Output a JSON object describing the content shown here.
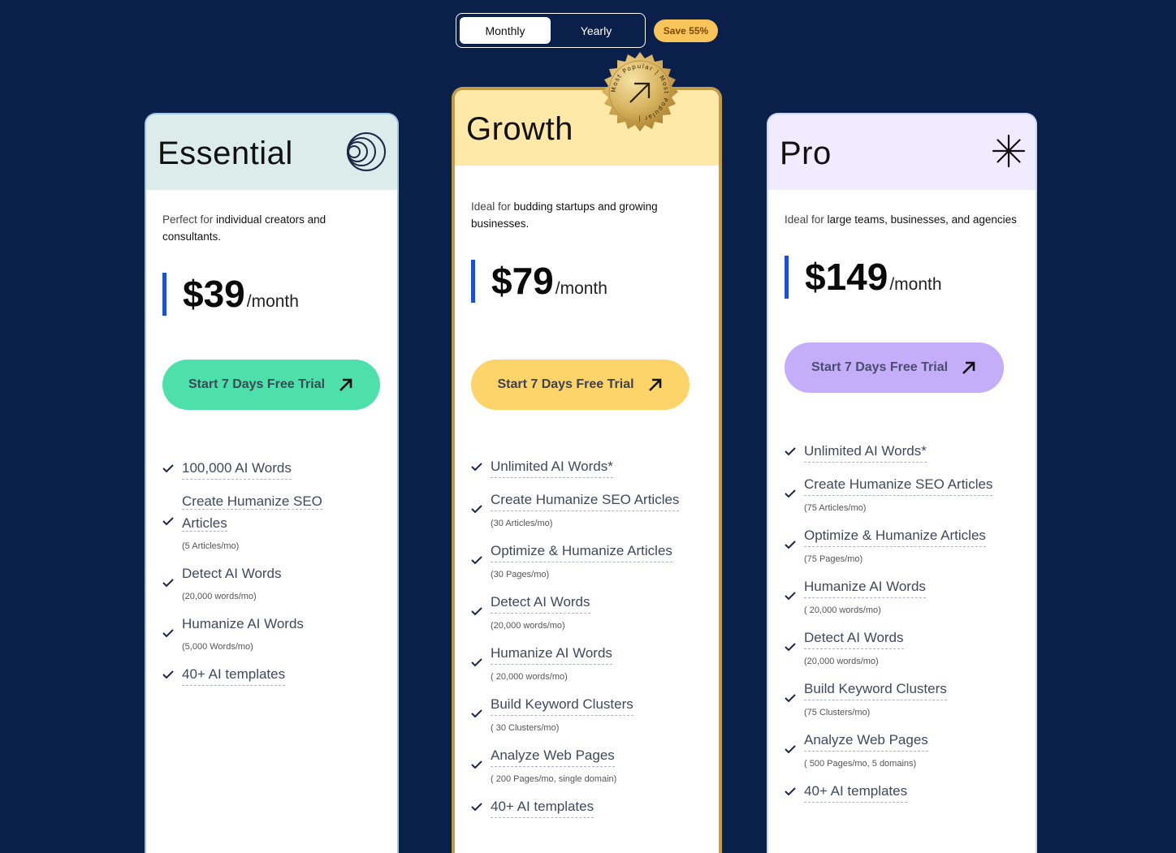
{
  "billing_toggle": {
    "monthly_label": "Monthly",
    "yearly_label": "Yearly",
    "selected": "Monthly",
    "save_badge": "Save 55%"
  },
  "popular_badge": {
    "text": "Most Popular | Most Popular |"
  },
  "plans": [
    {
      "name": "Essential",
      "desc_prefix": "Perfect for ",
      "desc_main": "individual creators and consultants.",
      "price": "$39",
      "period": "/month",
      "cta": "Start 7 Days Free Trial",
      "features": [
        {
          "name": "100,000 AI Words",
          "sub": ""
        },
        {
          "name": "Create Humanize SEO Articles",
          "sub": "(5 Articles/mo)"
        },
        {
          "name": "Detect AI Words",
          "sub": "(20,000 words/mo)"
        },
        {
          "name": "Humanize AI Words",
          "sub": "(5,000 Words/mo)"
        },
        {
          "name": "40+ AI templates",
          "sub": ""
        }
      ]
    },
    {
      "name": "Growth",
      "desc_prefix": "Ideal for ",
      "desc_main": "budding startups and growing businesses.",
      "price": "$79",
      "period": "/month",
      "cta": "Start 7 Days Free Trial",
      "features": [
        {
          "name": "Unlimited AI Words*",
          "sub": ""
        },
        {
          "name": "Create Humanize SEO Articles",
          "sub": "(30 Articles/mo)"
        },
        {
          "name": "Optimize & Humanize Articles",
          "sub": "(30 Pages/mo)"
        },
        {
          "name": "Detect AI Words",
          "sub": "(20,000 words/mo)"
        },
        {
          "name": "Humanize AI Words",
          "sub": "( 20,000 words/mo)"
        },
        {
          "name": "Build Keyword Clusters",
          "sub": "( 30 Clusters/mo)"
        },
        {
          "name": "Analyze Web Pages",
          "sub": "( 200 Pages/mo, single domain)"
        },
        {
          "name": "40+ AI templates",
          "sub": ""
        }
      ]
    },
    {
      "name": "Pro",
      "desc_prefix": "Ideal for ",
      "desc_main": "large teams, businesses, and agencies",
      "price": "$149",
      "period": "/month",
      "cta": "Start 7 Days Free Trial",
      "features": [
        {
          "name": "Unlimited AI Words*",
          "sub": ""
        },
        {
          "name": "Create Humanize SEO Articles",
          "sub": "(75 Articles/mo)"
        },
        {
          "name": "Optimize & Humanize Articles",
          "sub": "(75 Pages/mo)"
        },
        {
          "name": "Humanize AI Words",
          "sub": "( 20,000 words/mo)"
        },
        {
          "name": "Detect AI Words",
          "sub": "(20,000 words/mo)"
        },
        {
          "name": "Build Keyword Clusters",
          "sub": "(75  Clusters/mo)"
        },
        {
          "name": "Analyze Web Pages",
          "sub": "( 500  Pages/mo, 5 domains)"
        },
        {
          "name": "40+ AI templates",
          "sub": ""
        }
      ]
    }
  ],
  "colors": {
    "background": "#0b1f4b",
    "essential_accent": "#4ee0aa",
    "growth_accent": "#fdd46a",
    "pro_accent": "#c4aefa",
    "price_bar": "#1d4fd7"
  }
}
